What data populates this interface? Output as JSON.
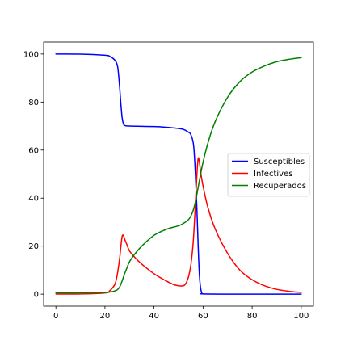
{
  "chart_data": {
    "type": "line",
    "title": "",
    "xlabel": "",
    "ylabel": "",
    "xlim": [
      -5,
      105
    ],
    "ylim": [
      -5,
      105
    ],
    "xticks": [
      0,
      20,
      40,
      60,
      80,
      100
    ],
    "yticks": [
      0,
      20,
      40,
      60,
      80,
      100
    ],
    "grid": false,
    "legend": "center-right",
    "series": [
      {
        "name": "Susceptibles",
        "color": "#0000ff",
        "x": [
          0,
          10,
          20,
          22,
          24,
          25,
          25.5,
          26,
          26.5,
          27,
          27.5,
          28,
          30,
          40,
          45,
          50,
          52,
          54,
          55,
          56,
          56.5,
          57,
          57.5,
          58,
          58.5,
          59,
          59.5,
          60,
          70,
          80,
          90,
          100
        ],
        "y": [
          100,
          99.95,
          99.5,
          99.0,
          97.5,
          95.5,
          92,
          86,
          79,
          73.5,
          71,
          70.3,
          70,
          69.8,
          69.5,
          69,
          68.6,
          67.5,
          66.5,
          63,
          57,
          47,
          35,
          20,
          8,
          2.5,
          0.5,
          0.1,
          0,
          0,
          0,
          0
        ]
      },
      {
        "name": "Infectives",
        "color": "#ff0000",
        "x": [
          0,
          10,
          20,
          22,
          24,
          25,
          26,
          26.5,
          27,
          27.5,
          28,
          29,
          30,
          32,
          35,
          40,
          45,
          48,
          50,
          52,
          53,
          54,
          55,
          56,
          57,
          57.5,
          58,
          58.5,
          59,
          60,
          62,
          65,
          70,
          75,
          80,
          85,
          90,
          95,
          100
        ],
        "y": [
          0.05,
          0.1,
          0.5,
          1.5,
          4,
          8,
          15,
          20,
          24,
          24.5,
          23,
          20.5,
          18,
          15.5,
          12.5,
          8.5,
          5.5,
          4,
          3.5,
          3.5,
          4.5,
          7,
          12,
          22,
          40,
          50,
          56.5,
          55,
          51,
          45,
          36,
          27,
          17,
          10,
          6,
          3.5,
          2,
          1.2,
          0.7
        ]
      },
      {
        "name": "Recuperados",
        "color": "#008000",
        "x": [
          0,
          10,
          20,
          22,
          24,
          25,
          26,
          27,
          28,
          29,
          30,
          32,
          35,
          40,
          45,
          50,
          52,
          54,
          55,
          56,
          57,
          58,
          59,
          60,
          62,
          65,
          70,
          75,
          80,
          85,
          90,
          95,
          100
        ],
        "y": [
          0.5,
          0.55,
          0.7,
          0.9,
          1.3,
          1.8,
          3,
          5.5,
          8.5,
          11,
          13.5,
          16.5,
          20,
          24.5,
          27,
          28.5,
          29.5,
          31,
          32.5,
          35,
          39,
          44.5,
          50,
          55,
          63,
          72,
          82,
          88.5,
          92.5,
          95,
          96.8,
          97.8,
          98.5
        ]
      }
    ]
  }
}
